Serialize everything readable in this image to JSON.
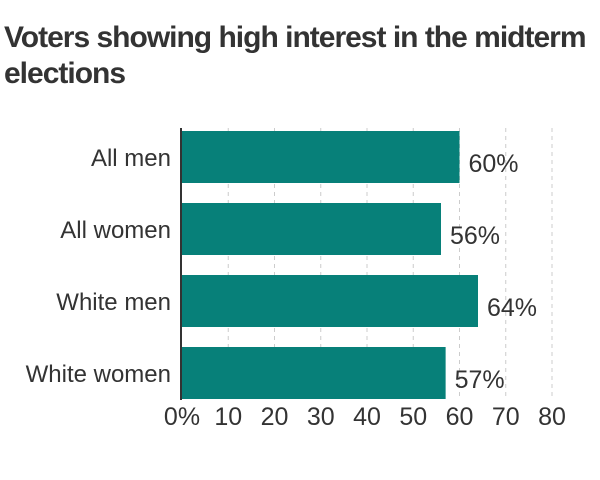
{
  "chart_data": {
    "type": "bar",
    "orientation": "horizontal",
    "title": "Voters showing high interest in the midterm elections",
    "categories": [
      "All men",
      "All women",
      "White men",
      "White women"
    ],
    "values": [
      60,
      56,
      64,
      57
    ],
    "value_labels": [
      "60%",
      "56%",
      "64%",
      "57%"
    ],
    "xlim": [
      0,
      80
    ],
    "xticks": [
      0,
      10,
      20,
      30,
      40,
      50,
      60,
      70,
      80
    ],
    "xtick_labels": [
      "0%",
      "10",
      "20",
      "30",
      "40",
      "50",
      "60",
      "70",
      "80"
    ],
    "xlabel": "",
    "ylabel": "",
    "grid": "vertical dashed",
    "legend": "none",
    "bar_color": "#078079"
  }
}
